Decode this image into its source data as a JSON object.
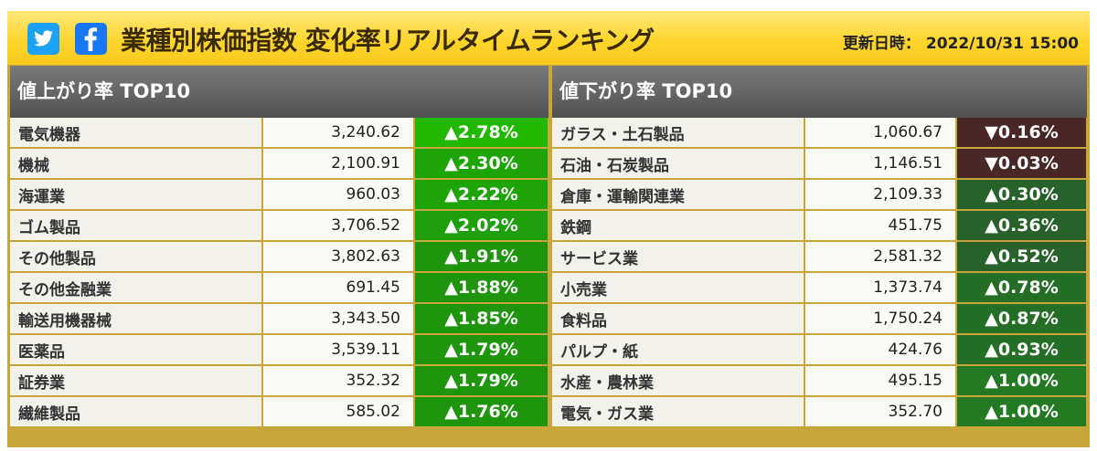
{
  "header": {
    "title": "業種別株価指数 変化率リアルタイムランキング",
    "updated_label": "更新日時：",
    "updated_value": "2022/10/31 15:00",
    "social": [
      "twitter-icon",
      "facebook-icon"
    ]
  },
  "colors": {
    "header_yellow": "#ffd62e",
    "up_strong": "#1fb000",
    "up_medium": "#1b8a14",
    "up_dark": "#246b2a",
    "down": "#4a2424"
  },
  "gainers": {
    "heading": "値上がり率 TOP10",
    "rows": [
      {
        "name": "電気機器",
        "value": "3,240.62",
        "change": "▲2.78%",
        "color": "#22b800"
      },
      {
        "name": "機械",
        "value": "2,100.91",
        "change": "▲2.30%",
        "color": "#1ea406"
      },
      {
        "name": "海運業",
        "value": "960.03",
        "change": "▲2.22%",
        "color": "#1ea406"
      },
      {
        "name": "ゴム製品",
        "value": "3,706.52",
        "change": "▲2.02%",
        "color": "#1e9e0a"
      },
      {
        "name": "その他製品",
        "value": "3,802.63",
        "change": "▲1.91%",
        "color": "#1f950e"
      },
      {
        "name": "その他金融業",
        "value": "691.45",
        "change": "▲1.88%",
        "color": "#1f950e"
      },
      {
        "name": "輸送用機器械",
        "value": "3,343.50",
        "change": "▲1.85%",
        "color": "#1f950e"
      },
      {
        "name": "医薬品",
        "value": "3,539.11",
        "change": "▲1.79%",
        "color": "#1f950e"
      },
      {
        "name": "証券業",
        "value": "352.32",
        "change": "▲1.79%",
        "color": "#1f950e"
      },
      {
        "name": "繊維製品",
        "value": "585.02",
        "change": "▲1.76%",
        "color": "#1f950e"
      }
    ]
  },
  "losers": {
    "heading": "値下がり率 TOP10",
    "rows": [
      {
        "name": "ガラス・土石製品",
        "value": "1,060.67",
        "change": "▼0.16%",
        "color": "#4a2727"
      },
      {
        "name": "石油・石炭製品",
        "value": "1,146.51",
        "change": "▼0.03%",
        "color": "#4a2727"
      },
      {
        "name": "倉庫・運輸関連業",
        "value": "2,109.33",
        "change": "▲0.30%",
        "color": "#27622b"
      },
      {
        "name": "鉄鋼",
        "value": "451.75",
        "change": "▲0.36%",
        "color": "#27622b"
      },
      {
        "name": "サービス業",
        "value": "2,581.32",
        "change": "▲0.52%",
        "color": "#27622b"
      },
      {
        "name": "小売業",
        "value": "1,373.74",
        "change": "▲0.78%",
        "color": "#246e25"
      },
      {
        "name": "食料品",
        "value": "1,750.24",
        "change": "▲0.87%",
        "color": "#246e25"
      },
      {
        "name": "パルプ・紙",
        "value": "424.76",
        "change": "▲0.93%",
        "color": "#246e25"
      },
      {
        "name": "水産・農林業",
        "value": "495.15",
        "change": "▲1.00%",
        "color": "#237a22"
      },
      {
        "name": "電気・ガス業",
        "value": "352.70",
        "change": "▲1.00%",
        "color": "#237a22"
      }
    ]
  }
}
